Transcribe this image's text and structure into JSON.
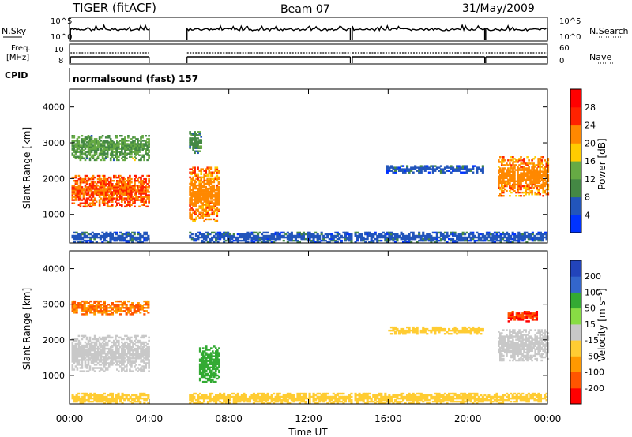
{
  "header": {
    "radar": "TIGER (fitACF)",
    "beam": "Beam 07",
    "date": "31/May/2009"
  },
  "strip_labels": {
    "nsky": "N.Sky",
    "nsearch": "N.Search",
    "freq_line1": "Freq.",
    "freq_line2": "[MHz]",
    "nave": "Nave",
    "cpid": "CPID",
    "cpid_value": "normalsound (fast) 157",
    "noise_ticks": [
      "10^5",
      "10^0"
    ],
    "freq_ticks": [
      "10",
      "8"
    ],
    "nave_ticks": [
      "60",
      "0"
    ]
  },
  "x_axis": {
    "label": "Time UT",
    "ticks": [
      "00:00",
      "04:00",
      "08:00",
      "12:00",
      "16:00",
      "20:00",
      "00:00"
    ],
    "range_hours": [
      0,
      24
    ]
  },
  "colors": {
    "power": [
      "#0033ff",
      "#2255bb",
      "#448844",
      "#66aa44",
      "#ffcc00",
      "#ff8800",
      "#ff2200",
      "#ff0000"
    ],
    "velocity": [
      "#2244bb",
      "#3366cc",
      "#33aa33",
      "#88dd44",
      "#c8c8c8",
      "#ffcc33",
      "#ff9900",
      "#ff5500",
      "#ff0000"
    ]
  },
  "chart_data": [
    {
      "type": "heatmap",
      "panel": "power",
      "xlabel": "Time UT",
      "ylabel": "Slant Range [km]",
      "xlim": [
        0,
        24
      ],
      "ylim": [
        200,
        4500
      ],
      "y_ticks": [
        1000,
        2000,
        3000,
        4000
      ],
      "colorbar": {
        "label": "Power [dB]",
        "ticks": [
          4,
          8,
          12,
          16,
          20,
          24,
          28
        ]
      },
      "data_gaps_hours": [
        [
          4.0,
          5.9
        ],
        [
          14.1,
          14.2
        ],
        [
          20.85,
          20.9
        ]
      ],
      "echo_regions": [
        {
          "t": [
            0.1,
            4.0
          ],
          "range": [
            1200,
            2100
          ],
          "value": 26
        },
        {
          "t": [
            0.1,
            4.0
          ],
          "range": [
            2500,
            3200
          ],
          "value": 14
        },
        {
          "t": [
            6.0,
            7.5
          ],
          "range": [
            800,
            2300
          ],
          "value": 24
        },
        {
          "t": [
            6.0,
            6.6
          ],
          "range": [
            2700,
            3300
          ],
          "value": 12
        },
        {
          "t": [
            15.9,
            20.8
          ],
          "range": [
            2150,
            2350
          ],
          "value": 8
        },
        {
          "t": [
            21.5,
            24.0
          ],
          "range": [
            1500,
            2600
          ],
          "value": 24
        },
        {
          "t": [
            0.1,
            24.0
          ],
          "range": [
            200,
            500
          ],
          "value": 8
        }
      ]
    },
    {
      "type": "heatmap",
      "panel": "velocity",
      "xlabel": "Time UT",
      "ylabel": "Slant Range [km]",
      "xlim": [
        0,
        24
      ],
      "ylim": [
        200,
        4500
      ],
      "y_ticks": [
        1000,
        2000,
        3000,
        4000
      ],
      "colorbar": {
        "label": "Velocity [m s⁻¹]",
        "ticks": [
          200,
          100,
          50,
          15,
          -15,
          -50,
          -100,
          -200
        ]
      },
      "data_gaps_hours": [
        [
          4.0,
          5.9
        ],
        [
          14.1,
          14.2
        ],
        [
          20.85,
          20.9
        ]
      ],
      "echo_regions": [
        {
          "t": [
            0.1,
            4.0
          ],
          "range": [
            1100,
            2100
          ],
          "value": 0
        },
        {
          "t": [
            0.1,
            4.0
          ],
          "range": [
            2700,
            3100
          ],
          "value": -100
        },
        {
          "t": [
            6.5,
            7.5
          ],
          "range": [
            800,
            1800
          ],
          "value": 80
        },
        {
          "t": [
            16.0,
            20.8
          ],
          "range": [
            2150,
            2350
          ],
          "value": -20
        },
        {
          "t": [
            21.5,
            24.0
          ],
          "range": [
            1400,
            2300
          ],
          "value": 0
        },
        {
          "t": [
            22.0,
            23.5
          ],
          "range": [
            2500,
            2800
          ],
          "value": -200
        },
        {
          "t": [
            0.1,
            24.0
          ],
          "range": [
            200,
            500
          ],
          "value": -40
        }
      ]
    }
  ]
}
